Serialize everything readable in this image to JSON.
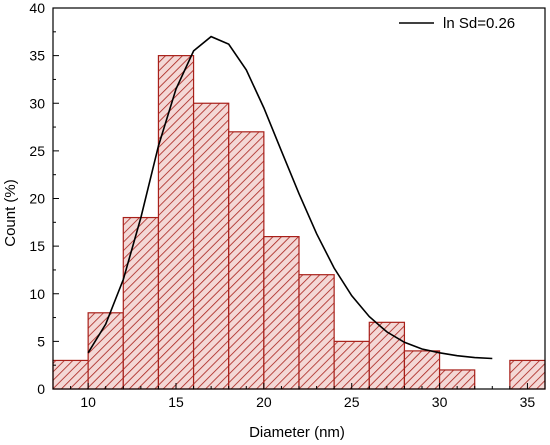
{
  "chart_data": {
    "type": "bar",
    "xlabel": "Diameter (nm)",
    "ylabel": "Count (%)",
    "xlim": [
      8,
      36
    ],
    "ylim": [
      0,
      40
    ],
    "x_ticks": [
      "10",
      "15",
      "20",
      "25",
      "30",
      "35"
    ],
    "y_ticks": [
      "0",
      "5",
      "10",
      "15",
      "20",
      "25",
      "30",
      "35",
      "40"
    ],
    "bins": [
      {
        "x0": 8,
        "x1": 10,
        "value": 3
      },
      {
        "x0": 10,
        "x1": 12,
        "value": 8
      },
      {
        "x0": 12,
        "x1": 14,
        "value": 18
      },
      {
        "x0": 14,
        "x1": 16,
        "value": 35
      },
      {
        "x0": 16,
        "x1": 18,
        "value": 30
      },
      {
        "x0": 18,
        "x1": 20,
        "value": 27
      },
      {
        "x0": 20,
        "x1": 22,
        "value": 16
      },
      {
        "x0": 22,
        "x1": 24,
        "value": 12
      },
      {
        "x0": 24,
        "x1": 26,
        "value": 5
      },
      {
        "x0": 26,
        "x1": 28,
        "value": 7
      },
      {
        "x0": 28,
        "x1": 30,
        "value": 4
      },
      {
        "x0": 30,
        "x1": 32,
        "value": 2
      },
      {
        "x0": 34,
        "x1": 36,
        "value": 3
      }
    ],
    "fit_curve": {
      "name": "ln Sd=0.26",
      "points": [
        [
          10,
          3.8
        ],
        [
          11,
          6.8
        ],
        [
          12,
          11.5
        ],
        [
          13,
          18.0
        ],
        [
          14,
          25.5
        ],
        [
          15,
          31.5
        ],
        [
          16,
          35.5
        ],
        [
          17,
          37.0
        ],
        [
          18,
          36.2
        ],
        [
          19,
          33.5
        ],
        [
          20,
          29.5
        ],
        [
          21,
          25.0
        ],
        [
          22,
          20.5
        ],
        [
          23,
          16.3
        ],
        [
          24,
          12.7
        ],
        [
          25,
          9.8
        ],
        [
          26,
          7.6
        ],
        [
          27,
          6.0
        ],
        [
          28,
          4.9
        ],
        [
          29,
          4.2
        ],
        [
          30,
          3.8
        ],
        [
          31,
          3.5
        ],
        [
          32,
          3.3
        ],
        [
          33,
          3.2
        ]
      ]
    },
    "legend_position": "top-right",
    "bar_fill": "#f4d8d6",
    "bar_stroke": "#a8201a",
    "hatch_color": "#a8201a",
    "curve_color": "#000000",
    "grid": false
  }
}
